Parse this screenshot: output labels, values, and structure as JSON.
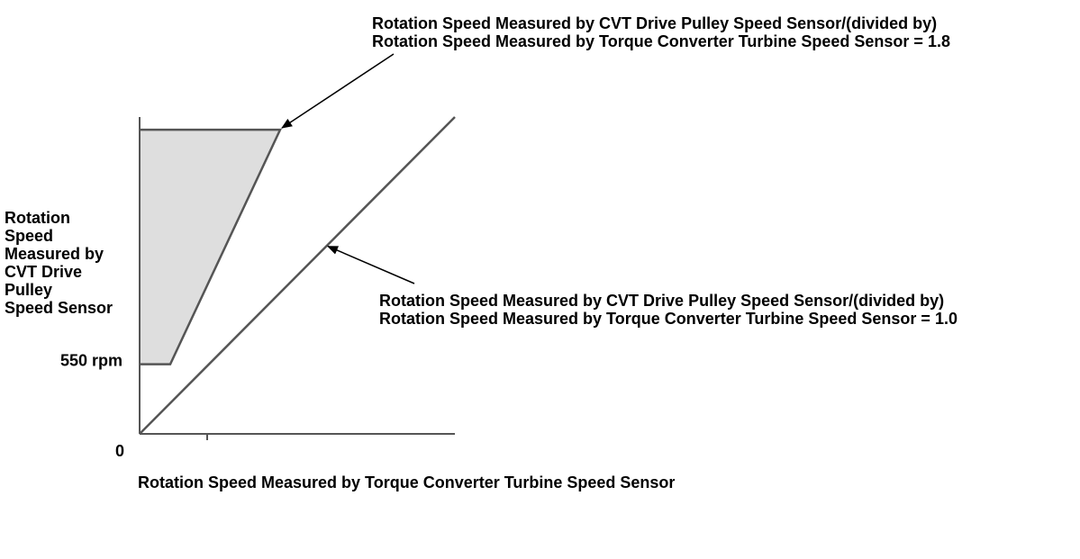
{
  "chart_data": {
    "type": "line",
    "title": "",
    "xlabel": "Rotation Speed Measured by Torque Converter Turbine Speed Sensor",
    "ylabel_lines": [
      "Rotation",
      "Speed",
      "Measured by",
      "CVT Drive",
      "Pulley",
      "Speed Sensor"
    ],
    "x_ticks": [
      {
        "value": 0,
        "label": ""
      }
    ],
    "y_ticks": [
      {
        "value": 550,
        "label": "550 rpm"
      }
    ],
    "origin_label": "0",
    "xlim": [
      0,
      3500
    ],
    "ylim": [
      0,
      2500
    ],
    "series": [
      {
        "name": "ratio-1.8-boundary",
        "points": [
          [
            0,
            550
          ],
          [
            340,
            550
          ],
          [
            1560,
            2400
          ],
          [
            0,
            2400
          ]
        ],
        "fill": "#dedede",
        "stroke": "#555555"
      },
      {
        "name": "ratio-1.0",
        "points": [
          [
            0,
            0
          ],
          [
            3500,
            2500
          ]
        ],
        "stroke": "#555555"
      }
    ],
    "annotations": [
      {
        "name": "annotation-ratio-1-8",
        "lines": [
          "Rotation Speed Measured by CVT Drive Pulley Speed Sensor/(divided by)",
          "Rotation Speed Measured by Torque Converter Turbine Speed Sensor = 1.8"
        ],
        "target": [
          1560,
          2400
        ]
      },
      {
        "name": "annotation-ratio-1-0",
        "lines": [
          "Rotation Speed Measured by CVT Drive Pulley Speed Sensor/(divided by)",
          "Rotation Speed Measured by Torque Converter Turbine Speed Sensor = 1.0"
        ],
        "target": [
          2080,
          1480
        ]
      }
    ],
    "colors": {
      "axis": "#555555",
      "fill": "#dedede",
      "text": "#000000"
    }
  }
}
